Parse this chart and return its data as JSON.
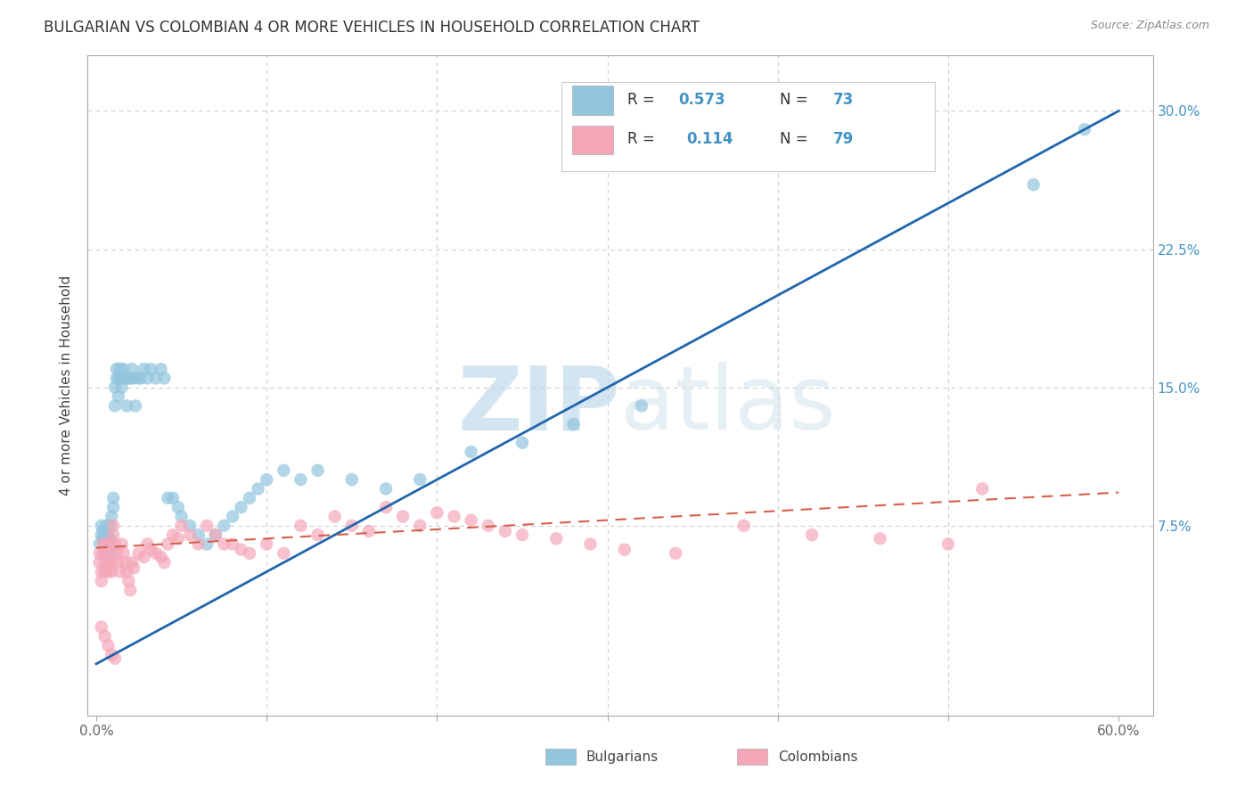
{
  "title": "BULGARIAN VS COLOMBIAN 4 OR MORE VEHICLES IN HOUSEHOLD CORRELATION CHART",
  "source": "Source: ZipAtlas.com",
  "ylabel": "4 or more Vehicles in Household",
  "x_tick_positions": [
    0.0,
    0.1,
    0.2,
    0.3,
    0.4,
    0.5,
    0.6
  ],
  "x_tick_labels": [
    "0.0%",
    "",
    "",
    "",
    "",
    "",
    "60.0%"
  ],
  "y_tick_positions": [
    0.0,
    0.075,
    0.15,
    0.225,
    0.3
  ],
  "y_tick_labels_right": [
    "",
    "7.5%",
    "15.0%",
    "22.5%",
    "30.0%"
  ],
  "xlim": [
    -0.005,
    0.62
  ],
  "ylim": [
    -0.028,
    0.33
  ],
  "blue_color": "#92c5de",
  "pink_color": "#f4a7b9",
  "blue_line_color": "#2166ac",
  "pink_line_color": "#d6604d",
  "bg_color": "#ffffff",
  "grid_color": "#cccccc",
  "legend_r1": "R = 0.573",
  "legend_n1": "N = 73",
  "legend_r2": "R =  0.114",
  "legend_n2": "N = 79",
  "blue_line_x": [
    0.0,
    0.6
  ],
  "blue_line_y": [
    0.0,
    0.3
  ],
  "pink_line_x": [
    0.0,
    0.6
  ],
  "pink_line_y": [
    0.063,
    0.093
  ],
  "bulgarians_x": [
    0.002,
    0.003,
    0.003,
    0.004,
    0.004,
    0.005,
    0.005,
    0.005,
    0.006,
    0.006,
    0.006,
    0.007,
    0.007,
    0.007,
    0.008,
    0.008,
    0.008,
    0.009,
    0.009,
    0.009,
    0.01,
    0.01,
    0.011,
    0.011,
    0.012,
    0.012,
    0.013,
    0.013,
    0.014,
    0.015,
    0.015,
    0.016,
    0.017,
    0.018,
    0.019,
    0.02,
    0.021,
    0.022,
    0.023,
    0.025,
    0.026,
    0.028,
    0.03,
    0.032,
    0.035,
    0.038,
    0.04,
    0.042,
    0.045,
    0.048,
    0.05,
    0.055,
    0.06,
    0.065,
    0.07,
    0.075,
    0.08,
    0.085,
    0.09,
    0.095,
    0.1,
    0.11,
    0.12,
    0.13,
    0.15,
    0.17,
    0.19,
    0.22,
    0.25,
    0.28,
    0.32,
    0.55,
    0.58
  ],
  "bulgarians_y": [
    0.065,
    0.07,
    0.075,
    0.068,
    0.072,
    0.06,
    0.065,
    0.07,
    0.063,
    0.068,
    0.075,
    0.06,
    0.065,
    0.07,
    0.063,
    0.068,
    0.075,
    0.06,
    0.065,
    0.08,
    0.085,
    0.09,
    0.14,
    0.15,
    0.155,
    0.16,
    0.145,
    0.155,
    0.16,
    0.15,
    0.155,
    0.16,
    0.155,
    0.14,
    0.155,
    0.155,
    0.16,
    0.155,
    0.14,
    0.155,
    0.155,
    0.16,
    0.155,
    0.16,
    0.155,
    0.16,
    0.155,
    0.09,
    0.09,
    0.085,
    0.08,
    0.075,
    0.07,
    0.065,
    0.07,
    0.075,
    0.08,
    0.085,
    0.09,
    0.095,
    0.1,
    0.105,
    0.1,
    0.105,
    0.1,
    0.095,
    0.1,
    0.115,
    0.12,
    0.13,
    0.14,
    0.26,
    0.29
  ],
  "colombians_x": [
    0.002,
    0.002,
    0.003,
    0.003,
    0.004,
    0.004,
    0.005,
    0.005,
    0.006,
    0.006,
    0.007,
    0.007,
    0.008,
    0.008,
    0.009,
    0.009,
    0.01,
    0.01,
    0.011,
    0.012,
    0.013,
    0.014,
    0.015,
    0.016,
    0.017,
    0.018,
    0.019,
    0.02,
    0.021,
    0.022,
    0.025,
    0.028,
    0.03,
    0.032,
    0.035,
    0.038,
    0.04,
    0.042,
    0.045,
    0.048,
    0.05,
    0.055,
    0.06,
    0.065,
    0.07,
    0.075,
    0.08,
    0.085,
    0.09,
    0.1,
    0.11,
    0.12,
    0.13,
    0.14,
    0.15,
    0.16,
    0.17,
    0.18,
    0.19,
    0.2,
    0.21,
    0.22,
    0.23,
    0.24,
    0.25,
    0.27,
    0.29,
    0.31,
    0.34,
    0.38,
    0.42,
    0.46,
    0.5,
    0.003,
    0.005,
    0.007,
    0.009,
    0.011,
    0.52
  ],
  "colombians_y": [
    0.06,
    0.055,
    0.05,
    0.045,
    0.065,
    0.06,
    0.055,
    0.05,
    0.065,
    0.06,
    0.055,
    0.05,
    0.065,
    0.06,
    0.055,
    0.05,
    0.075,
    0.07,
    0.065,
    0.06,
    0.055,
    0.05,
    0.065,
    0.06,
    0.055,
    0.05,
    0.045,
    0.04,
    0.055,
    0.052,
    0.06,
    0.058,
    0.065,
    0.062,
    0.06,
    0.058,
    0.055,
    0.065,
    0.07,
    0.068,
    0.075,
    0.07,
    0.065,
    0.075,
    0.07,
    0.065,
    0.065,
    0.062,
    0.06,
    0.065,
    0.06,
    0.075,
    0.07,
    0.08,
    0.075,
    0.072,
    0.085,
    0.08,
    0.075,
    0.082,
    0.08,
    0.078,
    0.075,
    0.072,
    0.07,
    0.068,
    0.065,
    0.062,
    0.06,
    0.075,
    0.07,
    0.068,
    0.065,
    0.02,
    0.015,
    0.01,
    0.005,
    0.003,
    0.095
  ]
}
